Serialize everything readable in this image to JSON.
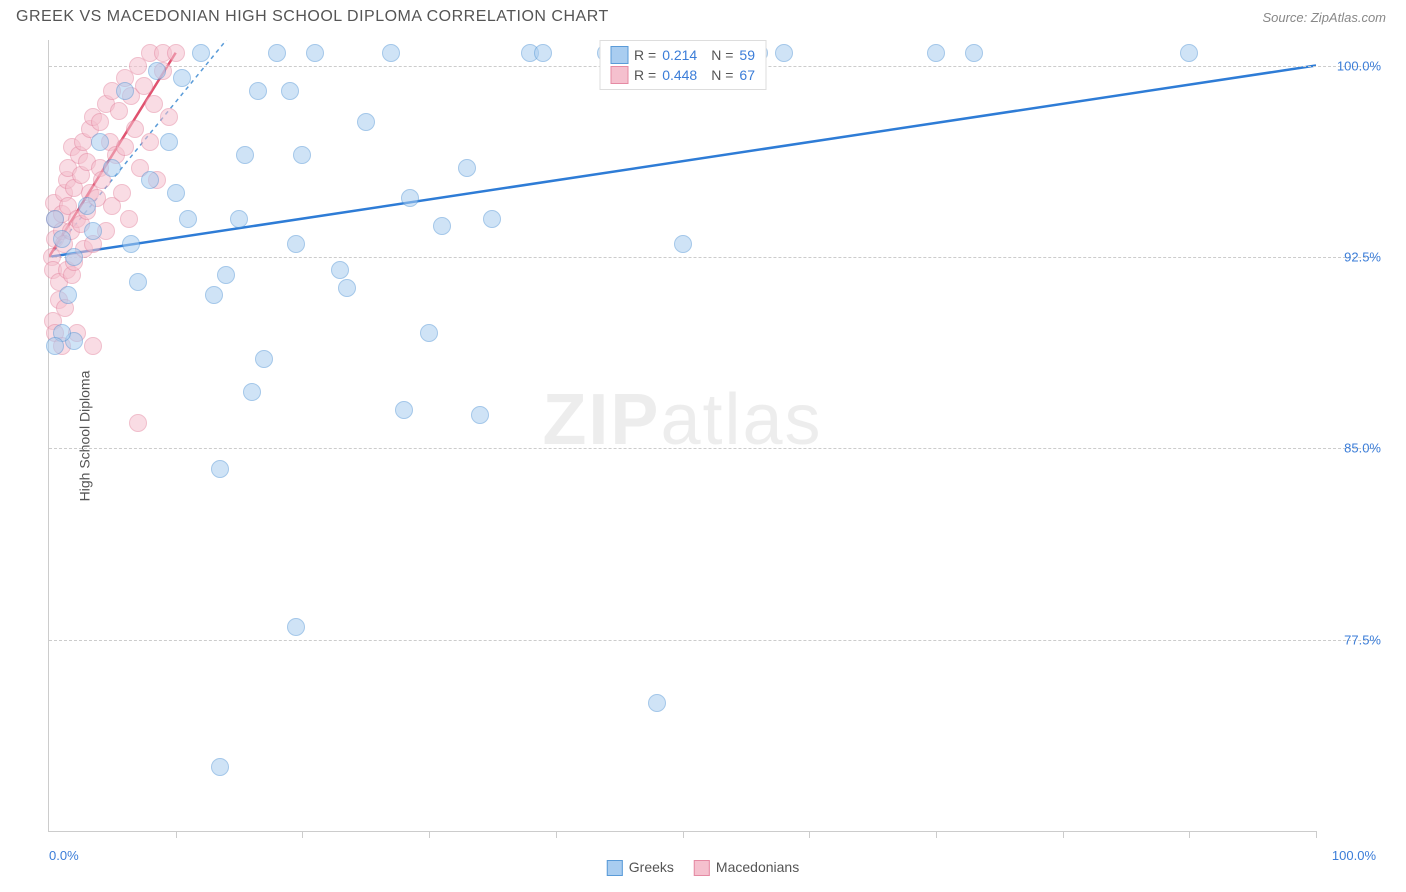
{
  "header": {
    "title": "GREEK VS MACEDONIAN HIGH SCHOOL DIPLOMA CORRELATION CHART",
    "source": "Source: ZipAtlas.com"
  },
  "chart": {
    "type": "scatter",
    "y_axis_title": "High School Diploma",
    "xlim": [
      0,
      100
    ],
    "ylim": [
      70,
      101
    ],
    "x_tick_positions": [
      10,
      20,
      30,
      40,
      50,
      60,
      70,
      80,
      90,
      100
    ],
    "x_start_label": "0.0%",
    "x_end_label": "100.0%",
    "y_gridlines": [
      {
        "value": 77.5,
        "label": "77.5%"
      },
      {
        "value": 85.0,
        "label": "85.0%"
      },
      {
        "value": 92.5,
        "label": "92.5%"
      },
      {
        "value": 100.0,
        "label": "100.0%"
      }
    ],
    "background_color": "#ffffff",
    "grid_color": "#cccccc",
    "series": {
      "greeks": {
        "label": "Greeks",
        "fill_color": "#a9cdf0",
        "border_color": "#5a9bd8",
        "line_color": "#2e7cd6",
        "R": "0.214",
        "N": "59",
        "trend": {
          "x1": 0,
          "y1": 92.5,
          "x2": 100,
          "y2": 100.0
        },
        "trend_dash": {
          "x1": 0,
          "y1": 92.5,
          "x2": 14,
          "y2": 101
        },
        "points": [
          [
            2,
            92.5
          ],
          [
            1,
            93.2
          ],
          [
            0.5,
            94.0
          ],
          [
            1.5,
            91.0
          ],
          [
            2,
            89.2
          ],
          [
            1,
            89.5
          ],
          [
            0.5,
            89.0
          ],
          [
            3,
            94.5
          ],
          [
            3.5,
            93.5
          ],
          [
            4,
            97.0
          ],
          [
            5,
            96.0
          ],
          [
            6,
            99.0
          ],
          [
            6.5,
            93.0
          ],
          [
            7,
            91.5
          ],
          [
            8,
            95.5
          ],
          [
            8.5,
            99.8
          ],
          [
            10,
            95.0
          ],
          [
            10.5,
            99.5
          ],
          [
            11,
            94.0
          ],
          [
            9.5,
            97.0
          ],
          [
            12,
            100.5
          ],
          [
            13,
            91.0
          ],
          [
            13.5,
            84.2
          ],
          [
            14,
            91.8
          ],
          [
            15,
            94.0
          ],
          [
            15.5,
            96.5
          ],
          [
            16,
            87.2
          ],
          [
            16.5,
            99.0
          ],
          [
            17,
            88.5
          ],
          [
            18,
            100.5
          ],
          [
            19,
            99.0
          ],
          [
            19.5,
            93.0
          ],
          [
            20,
            96.5
          ],
          [
            21,
            100.5
          ],
          [
            23,
            92.0
          ],
          [
            23.5,
            91.3
          ],
          [
            25,
            97.8
          ],
          [
            27,
            100.5
          ],
          [
            28,
            86.5
          ],
          [
            28.5,
            94.8
          ],
          [
            30,
            89.5
          ],
          [
            31,
            93.7
          ],
          [
            33,
            96.0
          ],
          [
            34,
            86.3
          ],
          [
            35,
            94.0
          ],
          [
            38,
            100.5
          ],
          [
            39,
            100.5
          ],
          [
            44,
            100.5
          ],
          [
            45,
            100.5
          ],
          [
            46,
            100.5
          ],
          [
            48,
            75.0
          ],
          [
            50,
            93.0
          ],
          [
            56,
            100.5
          ],
          [
            58,
            100.5
          ],
          [
            70,
            100.5
          ],
          [
            73,
            100.5
          ],
          [
            90,
            100.5
          ],
          [
            13.5,
            72.5
          ],
          [
            19.5,
            78.0
          ]
        ]
      },
      "macedonians": {
        "label": "Macedonians",
        "fill_color": "#f5c0ce",
        "border_color": "#e58aa3",
        "line_color": "#e0526f",
        "R": "0.448",
        "N": "67",
        "trend": {
          "x1": 0,
          "y1": 92.5,
          "x2": 10,
          "y2": 100.5
        },
        "points": [
          [
            0.2,
            92.5
          ],
          [
            0.3,
            92.0
          ],
          [
            0.5,
            93.2
          ],
          [
            0.5,
            94.0
          ],
          [
            0.4,
            94.6
          ],
          [
            0.8,
            91.5
          ],
          [
            0.8,
            90.8
          ],
          [
            1.0,
            93.5
          ],
          [
            1.0,
            94.2
          ],
          [
            1.2,
            95.0
          ],
          [
            1.2,
            93.0
          ],
          [
            1.4,
            92.0
          ],
          [
            1.4,
            95.5
          ],
          [
            1.5,
            96.0
          ],
          [
            1.5,
            94.5
          ],
          [
            1.7,
            93.5
          ],
          [
            1.8,
            91.8
          ],
          [
            1.8,
            96.8
          ],
          [
            2.0,
            92.3
          ],
          [
            2.0,
            95.2
          ],
          [
            2.2,
            94.0
          ],
          [
            2.2,
            89.5
          ],
          [
            2.4,
            96.5
          ],
          [
            2.5,
            93.8
          ],
          [
            2.5,
            95.7
          ],
          [
            2.7,
            97.0
          ],
          [
            2.8,
            92.8
          ],
          [
            3.0,
            94.3
          ],
          [
            3.0,
            96.2
          ],
          [
            3.2,
            95.0
          ],
          [
            3.2,
            97.5
          ],
          [
            3.5,
            93.0
          ],
          [
            3.5,
            98.0
          ],
          [
            3.8,
            94.8
          ],
          [
            4.0,
            96.0
          ],
          [
            4.0,
            97.8
          ],
          [
            4.2,
            95.5
          ],
          [
            4.5,
            98.5
          ],
          [
            4.5,
            93.5
          ],
          [
            4.8,
            97.0
          ],
          [
            5.0,
            99.0
          ],
          [
            5.0,
            94.5
          ],
          [
            5.3,
            96.5
          ],
          [
            5.5,
            98.2
          ],
          [
            5.8,
            95.0
          ],
          [
            6.0,
            99.5
          ],
          [
            6.0,
            96.8
          ],
          [
            6.3,
            94.0
          ],
          [
            6.5,
            98.8
          ],
          [
            6.8,
            97.5
          ],
          [
            7.0,
            100.0
          ],
          [
            7.2,
            96.0
          ],
          [
            7.5,
            99.2
          ],
          [
            8.0,
            97.0
          ],
          [
            8.0,
            100.5
          ],
          [
            8.3,
            98.5
          ],
          [
            8.5,
            95.5
          ],
          [
            9.0,
            99.8
          ],
          [
            9.0,
            100.5
          ],
          [
            9.5,
            98.0
          ],
          [
            10.0,
            100.5
          ],
          [
            0.3,
            90.0
          ],
          [
            0.5,
            89.5
          ],
          [
            1.0,
            89.0
          ],
          [
            1.3,
            90.5
          ],
          [
            7,
            86.0
          ],
          [
            3.5,
            89.0
          ]
        ]
      }
    },
    "watermark": {
      "bold": "ZIP",
      "thin": "atlas"
    }
  },
  "legend_top": {
    "rows": [
      {
        "swatch_fill": "#a9cdf0",
        "swatch_border": "#5a9bd8",
        "r_label": "R =",
        "r_val": "0.214",
        "n_label": "N =",
        "n_val": "59"
      },
      {
        "swatch_fill": "#f5c0ce",
        "swatch_border": "#e58aa3",
        "r_label": "R =",
        "r_val": "0.448",
        "n_label": "N =",
        "n_val": "67"
      }
    ]
  },
  "legend_bottom": {
    "items": [
      {
        "fill": "#a9cdf0",
        "border": "#5a9bd8",
        "label": "Greeks"
      },
      {
        "fill": "#f5c0ce",
        "border": "#e58aa3",
        "label": "Macedonians"
      }
    ]
  }
}
